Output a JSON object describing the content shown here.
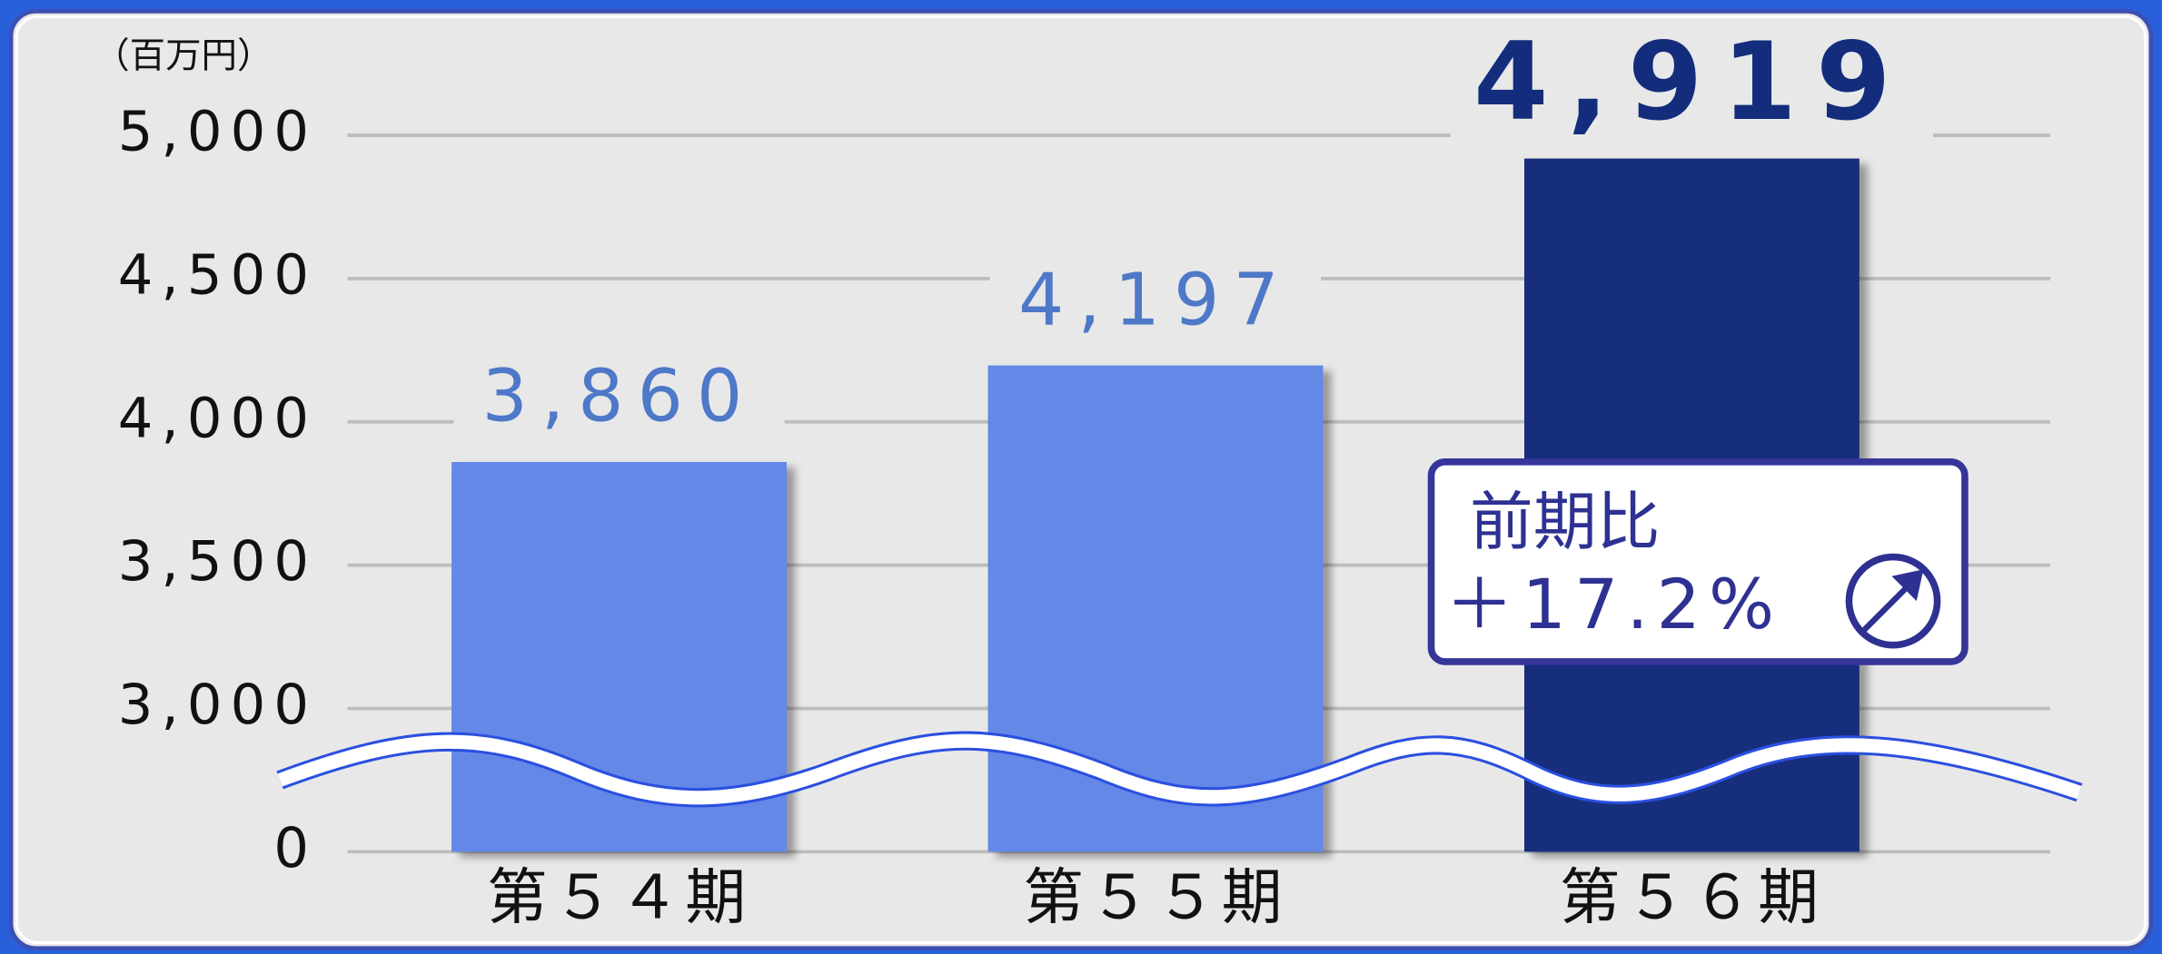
{
  "chart_data": {
    "type": "bar",
    "y_label": "（百万円）",
    "categories": [
      "第５４期",
      "第５５期",
      "第５６期"
    ],
    "values": [
      3860,
      4197,
      4919
    ],
    "value_labels": [
      "3,860",
      "4,197",
      "4,919"
    ],
    "colors": [
      "#6388e7",
      "#6388e7",
      "#132d7c"
    ],
    "label_colors": [
      "#4e78c8",
      "#4e78c8",
      "#132d7c"
    ],
    "ylim": [
      0,
      5000
    ],
    "yticks": [
      0,
      {
        "value": 3000,
        "label": "3,000"
      },
      {
        "value": 3500,
        "label": "3,500"
      },
      {
        "value": 4000,
        "label": "4,000"
      },
      {
        "value": 4500,
        "label": "4,500"
      },
      {
        "value": 5000,
        "label": "5,000"
      }
    ],
    "grid": true,
    "annotation": [
      "前期比",
      "＋17.2%"
    ]
  }
}
